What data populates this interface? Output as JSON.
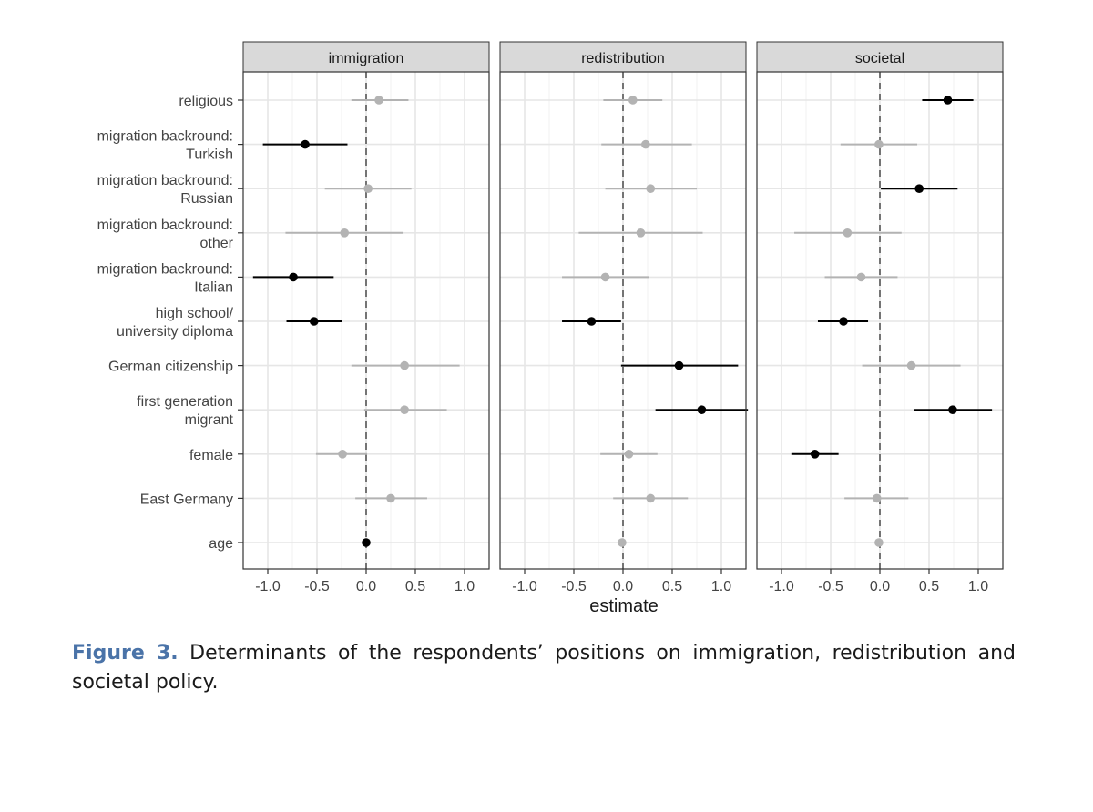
{
  "chart_data": {
    "type": "scatter",
    "subtype": "coefficient-plot-faceted",
    "xlabel": "estimate",
    "ylabel": "",
    "xlim": [
      -1.25,
      1.25
    ],
    "xticks": [
      -1.0,
      -0.5,
      0.0,
      0.5,
      1.0
    ],
    "xtick_labels": [
      "-1.0",
      "-0.5",
      "0.0",
      "0.5",
      "1.0"
    ],
    "reference_line": 0,
    "grid": true,
    "legend": "none",
    "categories": [
      {
        "key": "religious",
        "lines": [
          "religious"
        ]
      },
      {
        "key": "turkish",
        "lines": [
          "migration backround:",
          "Turkish"
        ]
      },
      {
        "key": "russian",
        "lines": [
          "migration backround:",
          "Russian"
        ]
      },
      {
        "key": "other",
        "lines": [
          "migration backround:",
          "other"
        ]
      },
      {
        "key": "italian",
        "lines": [
          "migration backround:",
          "Italian"
        ]
      },
      {
        "key": "diploma",
        "lines": [
          "high school/",
          "university diploma"
        ]
      },
      {
        "key": "citizenship",
        "lines": [
          "German citizenship"
        ]
      },
      {
        "key": "firstgen",
        "lines": [
          "first generation",
          "migrant"
        ]
      },
      {
        "key": "female",
        "lines": [
          "female"
        ]
      },
      {
        "key": "east",
        "lines": [
          "East Germany"
        ]
      },
      {
        "key": "age",
        "lines": [
          "age"
        ]
      }
    ],
    "colors": {
      "significant": "#000000",
      "nonsignificant": "#b3b3b3"
    },
    "panels": [
      {
        "title": "immigration",
        "points": [
          {
            "estimate": 0.13,
            "low": -0.15,
            "high": 0.43,
            "significant": false
          },
          {
            "estimate": -0.62,
            "low": -1.05,
            "high": -0.19,
            "significant": true
          },
          {
            "estimate": 0.02,
            "low": -0.42,
            "high": 0.46,
            "significant": false
          },
          {
            "estimate": -0.22,
            "low": -0.82,
            "high": 0.38,
            "significant": false
          },
          {
            "estimate": -0.74,
            "low": -1.15,
            "high": -0.33,
            "significant": true
          },
          {
            "estimate": -0.53,
            "low": -0.81,
            "high": -0.25,
            "significant": true
          },
          {
            "estimate": 0.39,
            "low": -0.15,
            "high": 0.95,
            "significant": false
          },
          {
            "estimate": 0.39,
            "low": -0.02,
            "high": 0.82,
            "significant": false
          },
          {
            "estimate": -0.24,
            "low": -0.51,
            "high": 0.01,
            "significant": false
          },
          {
            "estimate": 0.25,
            "low": -0.11,
            "high": 0.62,
            "significant": false
          },
          {
            "estimate": 0.0,
            "low": -0.01,
            "high": 0.01,
            "significant": true
          }
        ]
      },
      {
        "title": "redistribution",
        "points": [
          {
            "estimate": 0.1,
            "low": -0.2,
            "high": 0.4,
            "significant": false
          },
          {
            "estimate": 0.23,
            "low": -0.22,
            "high": 0.7,
            "significant": false
          },
          {
            "estimate": 0.28,
            "low": -0.18,
            "high": 0.75,
            "significant": false
          },
          {
            "estimate": 0.18,
            "low": -0.45,
            "high": 0.81,
            "significant": false
          },
          {
            "estimate": -0.18,
            "low": -0.62,
            "high": 0.26,
            "significant": false
          },
          {
            "estimate": -0.32,
            "low": -0.62,
            "high": -0.02,
            "significant": true
          },
          {
            "estimate": 0.57,
            "low": -0.02,
            "high": 1.17,
            "significant": true
          },
          {
            "estimate": 0.8,
            "low": 0.33,
            "high": 1.27,
            "significant": true
          },
          {
            "estimate": 0.06,
            "low": -0.23,
            "high": 0.35,
            "significant": false
          },
          {
            "estimate": 0.28,
            "low": -0.1,
            "high": 0.66,
            "significant": false
          },
          {
            "estimate": -0.01,
            "low": -0.02,
            "high": 0.0,
            "significant": false
          }
        ]
      },
      {
        "title": "societal",
        "points": [
          {
            "estimate": 0.69,
            "low": 0.43,
            "high": 0.95,
            "significant": true
          },
          {
            "estimate": -0.01,
            "low": -0.4,
            "high": 0.38,
            "significant": false
          },
          {
            "estimate": 0.4,
            "low": 0.01,
            "high": 0.79,
            "significant": true
          },
          {
            "estimate": -0.33,
            "low": -0.87,
            "high": 0.22,
            "significant": false
          },
          {
            "estimate": -0.19,
            "low": -0.56,
            "high": 0.18,
            "significant": false
          },
          {
            "estimate": -0.37,
            "low": -0.63,
            "high": -0.12,
            "significant": true
          },
          {
            "estimate": 0.32,
            "low": -0.18,
            "high": 0.82,
            "significant": false
          },
          {
            "estimate": 0.74,
            "low": 0.35,
            "high": 1.14,
            "significant": true
          },
          {
            "estimate": -0.66,
            "low": -0.9,
            "high": -0.42,
            "significant": true
          },
          {
            "estimate": -0.03,
            "low": -0.36,
            "high": 0.29,
            "significant": false
          },
          {
            "estimate": -0.01,
            "low": -0.02,
            "high": 0.0,
            "significant": false
          }
        ]
      }
    ]
  },
  "caption": {
    "label": "Figure 3.",
    "text": "Determinants of the respondents’ positions on immigration, redistribution and societal policy."
  }
}
